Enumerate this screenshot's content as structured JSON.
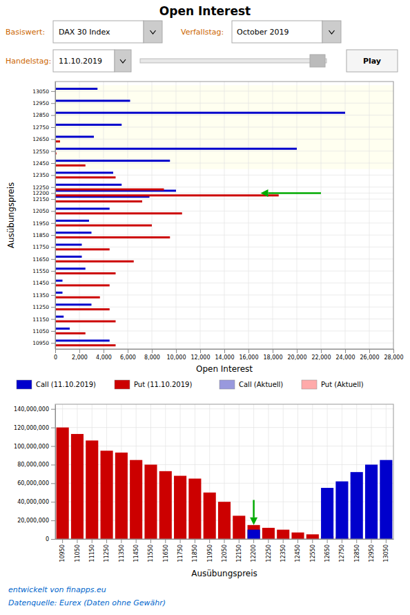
{
  "chart_data": [
    {
      "type": "bar",
      "orientation": "horizontal",
      "title": "Open Interest",
      "annotations": [
        {
          "text": "Basiswert:",
          "color": "#cc6600"
        },
        {
          "text": "DAX 30 Index"
        },
        {
          "text": "Verfallstag:",
          "color": "#cc6600"
        },
        {
          "text": "October 2019"
        },
        {
          "text": "Handelstag:",
          "color": "#cc6600"
        },
        {
          "text": "11.10.2019"
        },
        {
          "text": "Play"
        }
      ],
      "xlabel": "Open Interest",
      "ylabel": "Ausübungspreis",
      "y": [
        13050,
        12950,
        12850,
        12750,
        12650,
        12550,
        12450,
        12350,
        12250,
        12200,
        12150,
        12050,
        11950,
        11850,
        11750,
        11650,
        11550,
        11450,
        11350,
        11250,
        11150,
        11050,
        10950
      ],
      "series": [
        {
          "name": "Call (11.10.2019)",
          "color": "#0000cc",
          "values": [
            3500,
            6200,
            24000,
            5500,
            3200,
            20000,
            9500,
            4800,
            5500,
            10000,
            7800,
            4500,
            2800,
            3000,
            2200,
            2200,
            2500,
            600,
            600,
            3000,
            700,
            1200,
            4500
          ]
        },
        {
          "name": "Put (11.10.2019)",
          "color": "#cc0000",
          "values": [
            0,
            0,
            0,
            0,
            400,
            100,
            2500,
            5000,
            9000,
            18500,
            7200,
            10500,
            8000,
            9500,
            4500,
            6500,
            5000,
            4500,
            3700,
            4500,
            5000,
            2500,
            5000
          ]
        }
      ],
      "legend": "bottom",
      "legend_extra": [
        {
          "name": "Call (Aktuell)",
          "color": "#9999dd"
        },
        {
          "name": "Put (Aktuell)",
          "color": "#ffaaaa"
        }
      ],
      "band": {
        "range": [
          12400,
          13100
        ],
        "color": "#fffff0"
      },
      "arrows": [
        {
          "y": 12200,
          "from": 22000,
          "to": 17000,
          "color": "#00aa00"
        }
      ],
      "xlim": [
        0,
        28000
      ],
      "xticks": [
        0,
        {
          "value": 2000,
          "label": "2,000"
        },
        {
          "value": 4000,
          "label": "4,000"
        },
        {
          "value": 6000,
          "label": "6,000"
        },
        {
          "value": 8000,
          "label": "8,000"
        },
        {
          "value": 10000,
          "label": "10,000"
        },
        {
          "value": 12000,
          "label": "12,000"
        },
        {
          "value": 14000,
          "label": "14,000"
        },
        {
          "value": 16000,
          "label": "16,000"
        },
        {
          "value": 18000,
          "label": "18,000"
        },
        {
          "value": 20000,
          "label": "20,000"
        },
        {
          "value": 22000,
          "label": "22,000"
        },
        {
          "value": 24000,
          "label": "24,000"
        },
        {
          "value": 26000,
          "label": "26,000"
        },
        {
          "value": 28000,
          "label": "28,000"
        }
      ],
      "ylim": [
        10900,
        13130
      ],
      "yticks": [
        13050,
        12950,
        12850,
        12750,
        12650,
        12550,
        12450,
        12350,
        12250,
        12200,
        12150,
        12050,
        11950,
        11850,
        11750,
        11650,
        11550,
        11450,
        11350,
        11250,
        11150,
        11050,
        10950
      ],
      "grid": true
    },
    {
      "type": "bar",
      "xlabel": "Ausübungspreis",
      "categories": [
        10950,
        11050,
        11150,
        11250,
        11350,
        11450,
        11550,
        11650,
        11750,
        11850,
        11950,
        12050,
        12150,
        12200,
        12250,
        12350,
        12450,
        12550,
        12650,
        12750,
        12850,
        12950,
        13050
      ],
      "series": [
        {
          "color": "#cc0000",
          "values": [
            120000000,
            113000000,
            106000000,
            95000000,
            93000000,
            85000000,
            80000000,
            73000000,
            68000000,
            65000000,
            50000000,
            40000000,
            25000000,
            15000000,
            12000000,
            10000000,
            7000000,
            5000000,
            3000000,
            2000000,
            1000000,
            0,
            0
          ]
        },
        {
          "color": "#0000cc",
          "values": [
            0,
            0,
            0,
            0,
            0,
            0,
            0,
            0,
            0,
            0,
            0,
            0,
            0,
            10000000,
            0,
            0,
            0,
            0,
            55000000,
            62000000,
            72000000,
            80000000,
            85000000
          ]
        }
      ],
      "arrows": [
        {
          "category": 12200,
          "from": 42000000,
          "to": 15000000,
          "color": "#00aa00"
        }
      ],
      "ylim": [
        0,
        145000000
      ],
      "yticks": [
        0,
        {
          "value": 20000000,
          "label": "20,000,000"
        },
        {
          "value": 40000000,
          "label": "40,000,000"
        },
        {
          "value": 60000000,
          "label": "60,000,000"
        },
        {
          "value": 80000000,
          "label": "80,000,000"
        },
        {
          "value": 100000000,
          "label": "100,000,000"
        },
        {
          "value": 120000000,
          "label": "120,000,000"
        },
        {
          "value": 140000000,
          "label": "140,000,000"
        }
      ],
      "grid": true,
      "annotations": [
        {
          "text": "entwickelt von finapps.eu",
          "color": "#0066cc"
        },
        {
          "text": "Datenquelle: Eurex (Daten ohne Gewähr)",
          "color": "#0066cc"
        }
      ]
    }
  ]
}
